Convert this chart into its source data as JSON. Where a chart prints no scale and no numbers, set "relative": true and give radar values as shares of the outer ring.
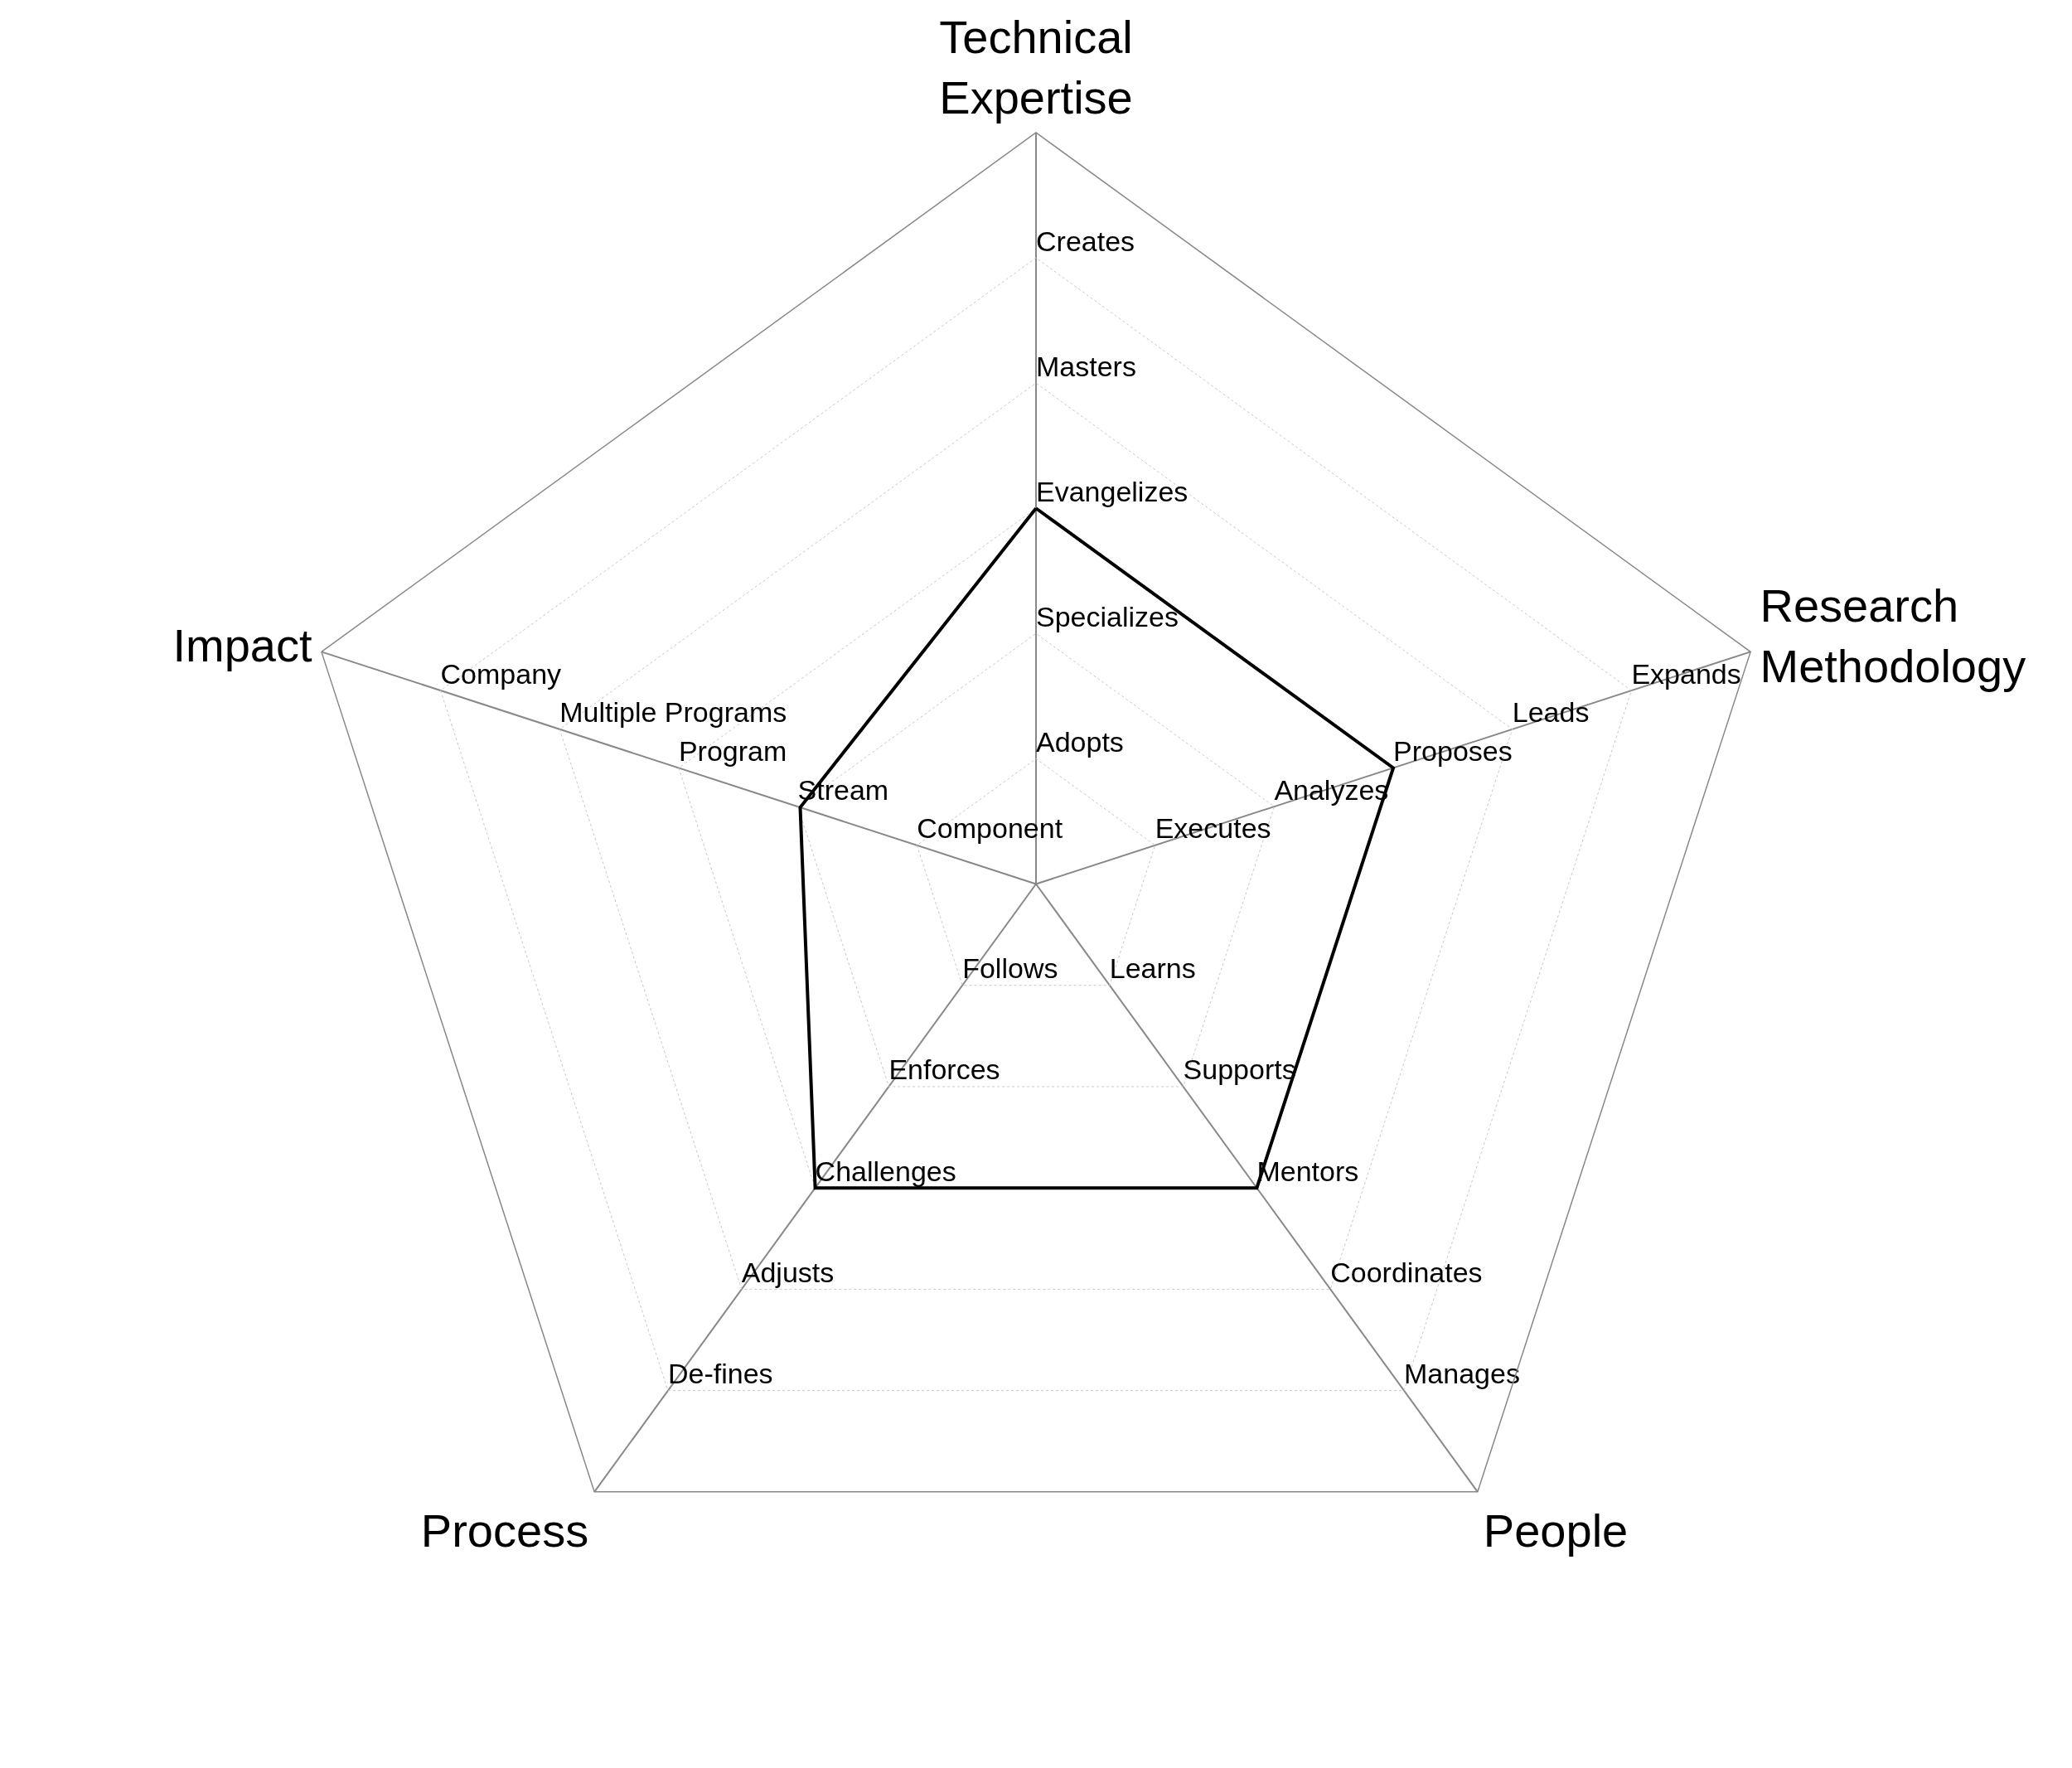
{
  "chart_data": {
    "type": "radar",
    "categories": [
      "Technical Expertise",
      "Research Methodology",
      "People",
      "Process",
      "Impact"
    ],
    "series": [
      {
        "color": "#000000",
        "values": [
          0.5,
          0.5,
          0.5,
          0.5,
          0.33
        ]
      }
    ],
    "relative": true,
    "grid": true,
    "marker": "none",
    "line_style": "solid",
    "annotations": [
      "Adopts",
      "Specializes",
      "Evangelizes",
      "Masters",
      "Creates",
      "Executes",
      "Analyzes",
      "Proposes",
      "Leads",
      "Expands",
      "Learns",
      "Supports",
      "Mentors",
      "Coordinates",
      "Manages",
      "Follows",
      "Enforces",
      "Challenges",
      "Adjusts",
      "De-fines",
      "Component",
      "Stream",
      "Program",
      "Multiple Programs",
      "Company"
    ]
  }
}
